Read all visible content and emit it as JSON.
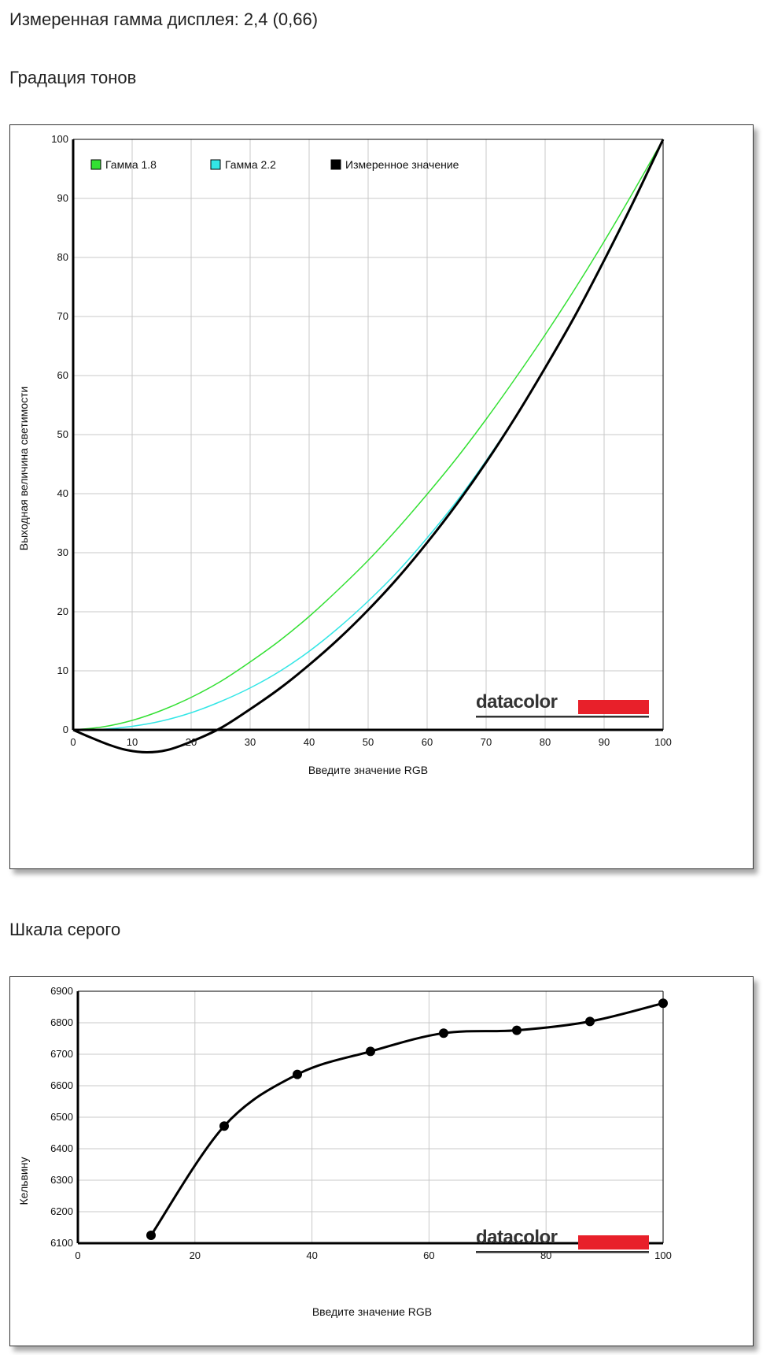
{
  "header": {
    "measured_gamma": "Измеренная гамма дисплея: 2,4 (0,66)",
    "tone_section": "Градация тонов",
    "gray_section": "Шкала серого"
  },
  "watermark": "datacolor",
  "colors": {
    "gamma18": "#33e033",
    "gamma22": "#33e6e6",
    "measured": "#000000",
    "brand_red": "#e8202a"
  },
  "chart_data": [
    {
      "type": "line",
      "xlabel": "Введите значение RGB",
      "ylabel": "Выходная величина светимости",
      "xlim": [
        0,
        100
      ],
      "ylim": [
        0,
        100
      ],
      "xticks": [
        0,
        10,
        20,
        30,
        40,
        50,
        60,
        70,
        80,
        90,
        100
      ],
      "yticks": [
        0,
        10,
        20,
        30,
        40,
        50,
        60,
        70,
        80,
        90,
        100
      ],
      "grid": true,
      "legend": "top-left",
      "series": [
        {
          "name": "Гамма 1.8",
          "color": "#33e033",
          "x": [
            0,
            5,
            10,
            15,
            20,
            25,
            30,
            35,
            40,
            45,
            50,
            55,
            60,
            65,
            70,
            75,
            80,
            85,
            90,
            95,
            100
          ],
          "y": [
            0,
            0.5,
            1.6,
            3.3,
            5.5,
            8.2,
            11.5,
            15.1,
            19.2,
            23.8,
            28.7,
            34.1,
            39.9,
            46.0,
            52.6,
            59.6,
            66.9,
            74.6,
            82.7,
            91.2,
            100
          ]
        },
        {
          "name": "Гамма 2.2",
          "color": "#33e6e6",
          "x": [
            0,
            5,
            10,
            15,
            20,
            25,
            30,
            35,
            40,
            45,
            50,
            55,
            60,
            65,
            70,
            75,
            80,
            85,
            90,
            95,
            100
          ],
          "y": [
            0,
            0.1,
            0.6,
            1.5,
            2.9,
            4.8,
            7.1,
            9.9,
            13.3,
            17.3,
            21.8,
            26.8,
            32.5,
            38.7,
            45.6,
            53.1,
            61.2,
            69.9,
            79.3,
            89.3,
            100
          ]
        },
        {
          "name": "Измеренное значение",
          "color": "#000000",
          "x": [
            0,
            3,
            6,
            9,
            12.5,
            16,
            20,
            25,
            30,
            35,
            40,
            45,
            50,
            55,
            60,
            65,
            70,
            75,
            80,
            85,
            90,
            95,
            100
          ],
          "y": [
            0,
            -1.3,
            -2.5,
            -3.4,
            -3.8,
            -3.4,
            -2.0,
            0.3,
            3.5,
            7.0,
            11.0,
            15.4,
            20.3,
            25.7,
            31.7,
            38.2,
            45.3,
            53.0,
            61.3,
            70.0,
            79.5,
            89.5,
            100
          ]
        }
      ]
    },
    {
      "type": "line",
      "xlabel": "Введите значение RGB",
      "ylabel": "Кельвину",
      "xlim": [
        0,
        100
      ],
      "ylim": [
        6100,
        6900
      ],
      "xticks": [
        0,
        20,
        40,
        60,
        80,
        100
      ],
      "yticks": [
        6100,
        6200,
        6300,
        6400,
        6500,
        6600,
        6700,
        6800,
        6900
      ],
      "grid": true,
      "series": [
        {
          "color": "#000000",
          "x": [
            12.5,
            25,
            37.5,
            50,
            62.5,
            75,
            87.5,
            100
          ],
          "y": [
            6125,
            6472,
            6636,
            6709,
            6767,
            6776,
            6804,
            6862
          ]
        }
      ]
    }
  ]
}
